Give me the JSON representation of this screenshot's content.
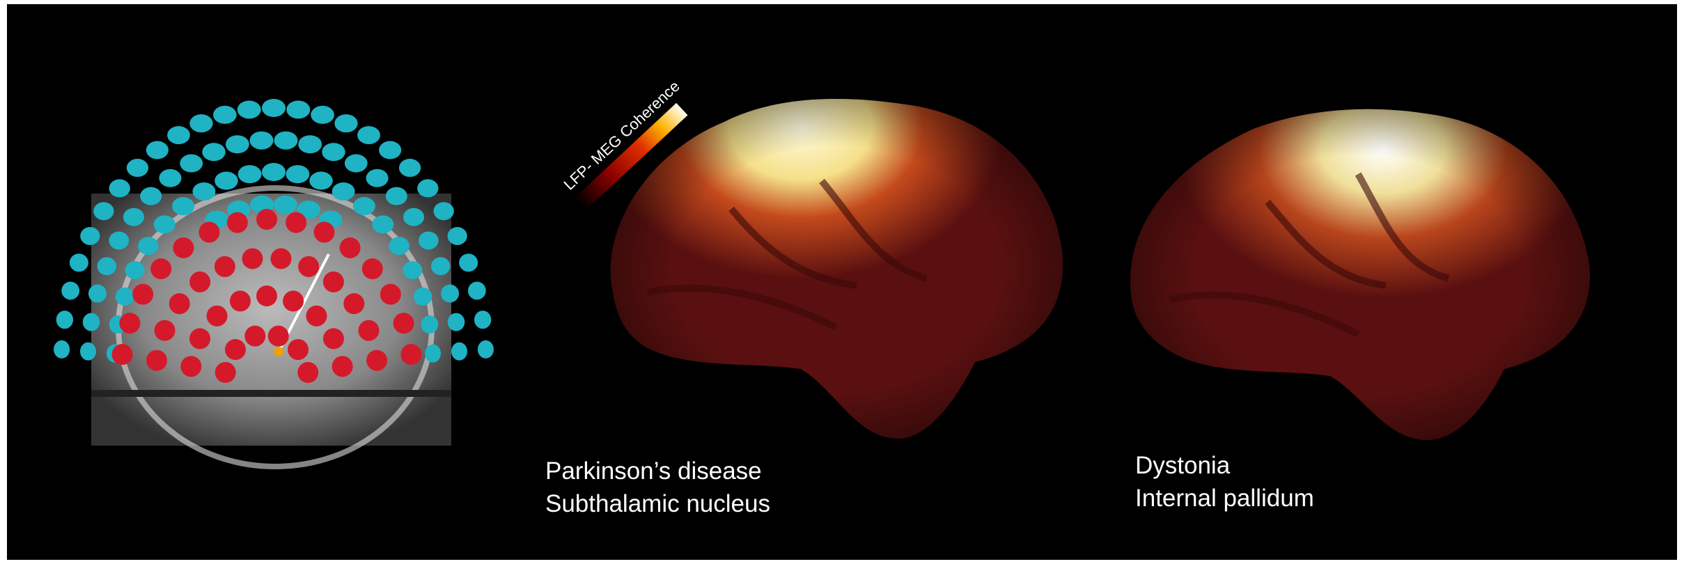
{
  "colorbar": {
    "label": "LFP- MEG Coherence"
  },
  "panels": [
    {
      "title": "Parkinson’s disease",
      "subtitle": "Subthalamic nucleus"
    },
    {
      "title": "Dystonia",
      "subtitle": "Internal pallidum"
    }
  ]
}
